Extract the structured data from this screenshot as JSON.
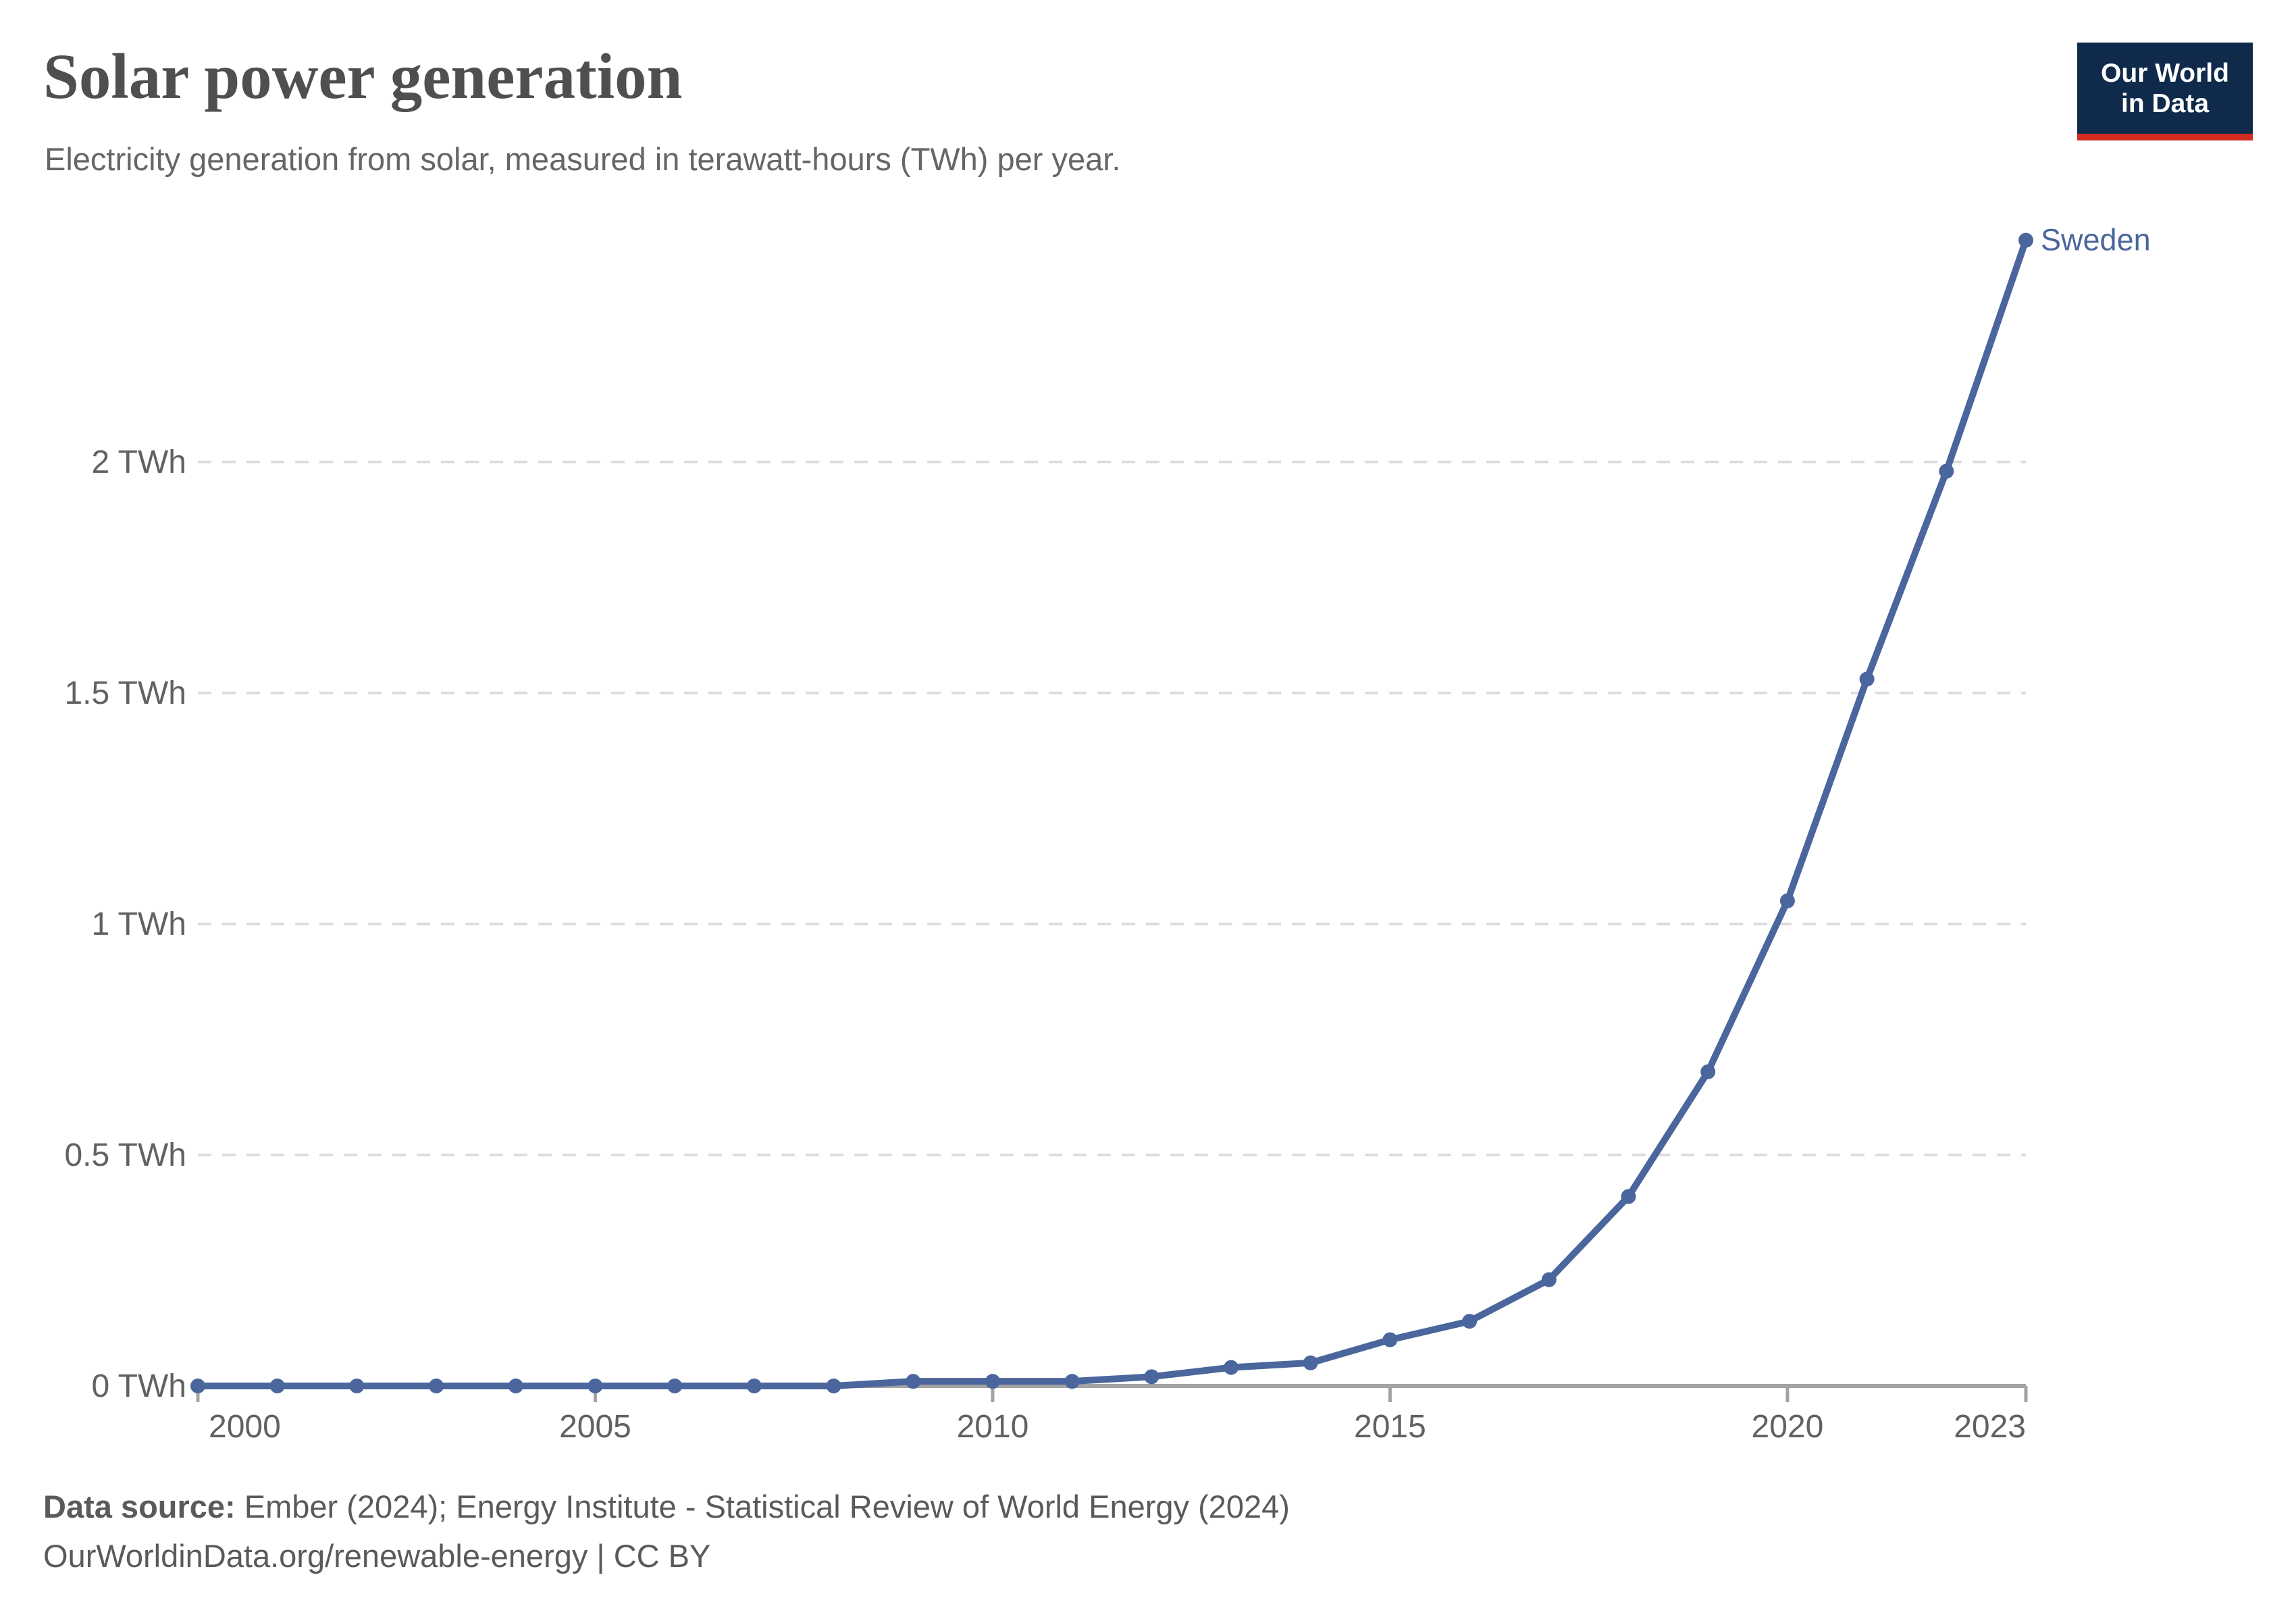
{
  "header": {
    "title": "Solar power generation",
    "subtitle": "Electricity generation from solar, measured in terawatt-hours (TWh) per year."
  },
  "logo": {
    "line1": "Our World",
    "line2": "in Data",
    "background_color": "#0f2a4a",
    "accent_color": "#d42b21"
  },
  "chart_data": {
    "type": "line",
    "title": "Solar power generation",
    "subtitle": "Electricity generation from solar, measured in terawatt-hours (TWh) per year.",
    "xlabel": "",
    "ylabel": "",
    "x": [
      2000,
      2001,
      2002,
      2003,
      2004,
      2005,
      2006,
      2007,
      2008,
      2009,
      2010,
      2011,
      2012,
      2013,
      2014,
      2015,
      2016,
      2017,
      2018,
      2019,
      2020,
      2021,
      2022,
      2023
    ],
    "series": [
      {
        "name": "Sweden",
        "color": "#4a669c",
        "values": [
          0,
          0,
          0,
          0,
          0,
          0,
          0,
          0,
          0,
          0.01,
          0.01,
          0.01,
          0.02,
          0.04,
          0.05,
          0.1,
          0.14,
          0.23,
          0.41,
          0.68,
          1.05,
          1.53,
          1.98,
          2.48
        ]
      }
    ],
    "xlim": [
      2000,
      2023
    ],
    "ylim": [
      0,
      2.5
    ],
    "x_ticks": [
      2000,
      2005,
      2010,
      2015,
      2020,
      2023
    ],
    "y_ticks": [
      {
        "value": 0,
        "label": "0 TWh"
      },
      {
        "value": 0.5,
        "label": "0.5 TWh"
      },
      {
        "value": 1,
        "label": "1 TWh"
      },
      {
        "value": 1.5,
        "label": "1.5 TWh"
      },
      {
        "value": 2,
        "label": "2 TWh"
      }
    ],
    "grid": "horizontal-dashed",
    "legend_position": "end-of-line-label"
  },
  "footer": {
    "source_label": "Data source:",
    "source_text": " Ember (2024); Energy Institute - Statistical Review of World Energy (2024)",
    "license_url": "OurWorldinData.org/renewable-energy",
    "license_suffix": " | CC BY"
  }
}
